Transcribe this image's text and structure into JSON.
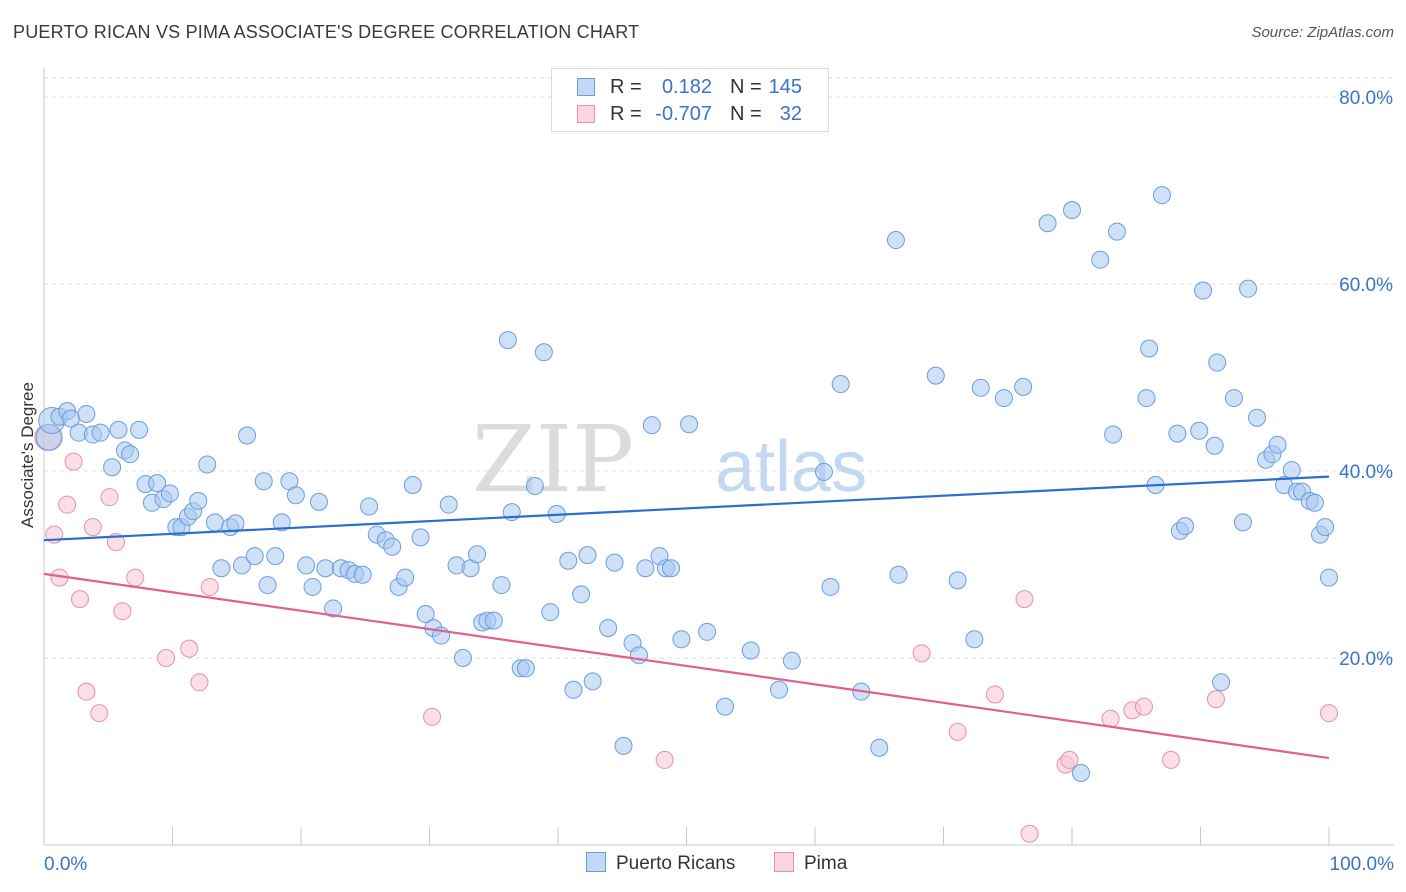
{
  "title": "PUERTO RICAN VS PIMA ASSOCIATE'S DEGREE CORRELATION CHART",
  "source": "Source: ZipAtlas.com",
  "legend": {
    "rows": [
      {
        "r_label": "R =",
        "r_value": "0.182",
        "n_label": "N =",
        "n_value": "145",
        "color": "#a8c8f0",
        "border": "#6a9de0"
      },
      {
        "r_label": "R =",
        "r_value": "-0.707",
        "n_label": "N =",
        "n_value": "32",
        "color": "#f8c4d4",
        "border": "#e890aa"
      }
    ]
  },
  "bottom_legend": {
    "series1": "Puerto Ricans",
    "series2": "Pima"
  },
  "watermark": {
    "zip": "ZIP",
    "atlas": "atlas"
  },
  "chart_data": {
    "type": "scatter",
    "title": "PUERTO RICAN VS PIMA ASSOCIATE'S DEGREE CORRELATION CHART",
    "xlabel": "",
    "ylabel": "Associate's Degree",
    "xlim": [
      0,
      100
    ],
    "ylim": [
      0,
      80
    ],
    "x_tick_labels": [
      "0.0%",
      "100.0%"
    ],
    "y_ticks": [
      20,
      40,
      60,
      80
    ],
    "y_tick_labels": [
      "20.0%",
      "40.0%",
      "60.0%",
      "80.0%"
    ],
    "series": [
      {
        "name": "Puerto Ricans",
        "color": "#a8c8f0",
        "stroke": "#6a9de0",
        "line_color": "#2a6fcf",
        "trend": {
          "x": [
            0,
            100
          ],
          "y": [
            32.6,
            39.4
          ]
        },
        "points": [
          [
            0.4,
            43.6
          ],
          [
            0.6,
            45.4
          ],
          [
            1.2,
            45.8
          ],
          [
            1.8,
            46.4
          ],
          [
            2.1,
            45.6
          ],
          [
            2.7,
            44.1
          ],
          [
            3.3,
            46.1
          ],
          [
            3.8,
            43.9
          ],
          [
            4.4,
            44.1
          ],
          [
            5.3,
            40.4
          ],
          [
            5.8,
            44.4
          ],
          [
            6.3,
            42.2
          ],
          [
            6.7,
            41.8
          ],
          [
            7.4,
            44.4
          ],
          [
            7.9,
            38.6
          ],
          [
            8.4,
            36.6
          ],
          [
            8.8,
            38.7
          ],
          [
            9.3,
            37.0
          ],
          [
            9.8,
            37.6
          ],
          [
            10.3,
            34.0
          ],
          [
            10.7,
            34.0
          ],
          [
            11.2,
            35.1
          ],
          [
            11.6,
            35.7
          ],
          [
            12.0,
            36.8
          ],
          [
            12.7,
            40.7
          ],
          [
            13.3,
            34.5
          ],
          [
            13.8,
            29.6
          ],
          [
            14.5,
            34.0
          ],
          [
            14.9,
            34.4
          ],
          [
            15.4,
            29.9
          ],
          [
            15.8,
            43.8
          ],
          [
            16.4,
            30.9
          ],
          [
            17.1,
            38.9
          ],
          [
            17.4,
            27.8
          ],
          [
            18.0,
            30.9
          ],
          [
            18.5,
            34.5
          ],
          [
            19.1,
            38.9
          ],
          [
            19.6,
            37.4
          ],
          [
            20.4,
            29.9
          ],
          [
            20.9,
            27.6
          ],
          [
            21.4,
            36.7
          ],
          [
            21.9,
            29.6
          ],
          [
            22.5,
            25.3
          ],
          [
            23.1,
            29.6
          ],
          [
            23.7,
            29.4
          ],
          [
            24.2,
            29.0
          ],
          [
            24.8,
            28.9
          ],
          [
            25.3,
            36.2
          ],
          [
            25.9,
            33.2
          ],
          [
            26.6,
            32.6
          ],
          [
            27.1,
            31.9
          ],
          [
            27.6,
            27.6
          ],
          [
            28.1,
            28.6
          ],
          [
            28.7,
            38.5
          ],
          [
            29.3,
            32.9
          ],
          [
            29.7,
            24.7
          ],
          [
            30.3,
            23.2
          ],
          [
            30.9,
            22.4
          ],
          [
            31.5,
            36.4
          ],
          [
            32.1,
            29.9
          ],
          [
            32.6,
            20.0
          ],
          [
            33.2,
            29.6
          ],
          [
            33.7,
            31.1
          ],
          [
            34.1,
            23.8
          ],
          [
            34.5,
            24.0
          ],
          [
            35.0,
            24.0
          ],
          [
            35.6,
            27.8
          ],
          [
            36.1,
            54.0
          ],
          [
            36.4,
            35.6
          ],
          [
            37.1,
            18.9
          ],
          [
            37.5,
            18.9
          ],
          [
            38.2,
            38.4
          ],
          [
            38.9,
            52.7
          ],
          [
            39.4,
            24.9
          ],
          [
            39.9,
            35.4
          ],
          [
            40.8,
            30.4
          ],
          [
            41.2,
            16.6
          ],
          [
            41.8,
            26.8
          ],
          [
            42.3,
            31.0
          ],
          [
            42.7,
            17.5
          ],
          [
            43.9,
            23.2
          ],
          [
            44.4,
            30.2
          ],
          [
            45.1,
            10.6
          ],
          [
            45.8,
            21.6
          ],
          [
            46.3,
            20.3
          ],
          [
            46.8,
            29.6
          ],
          [
            47.3,
            44.9
          ],
          [
            47.9,
            30.9
          ],
          [
            48.4,
            29.6
          ],
          [
            48.8,
            29.6
          ],
          [
            49.6,
            22.0
          ],
          [
            50.2,
            45.0
          ],
          [
            51.6,
            22.8
          ],
          [
            53.0,
            14.8
          ],
          [
            55.0,
            20.8
          ],
          [
            57.2,
            16.6
          ],
          [
            58.2,
            19.7
          ],
          [
            60.7,
            39.9
          ],
          [
            61.2,
            27.6
          ],
          [
            62.0,
            49.3
          ],
          [
            63.6,
            16.4
          ],
          [
            65.0,
            10.4
          ],
          [
            66.3,
            64.7
          ],
          [
            66.5,
            28.9
          ],
          [
            69.4,
            50.2
          ],
          [
            71.1,
            28.3
          ],
          [
            72.4,
            22.0
          ],
          [
            72.9,
            48.9
          ],
          [
            74.7,
            47.8
          ],
          [
            76.2,
            49.0
          ],
          [
            78.1,
            66.5
          ],
          [
            80.0,
            67.9
          ],
          [
            80.7,
            7.7
          ],
          [
            82.2,
            62.6
          ],
          [
            83.2,
            43.9
          ],
          [
            83.5,
            65.6
          ],
          [
            85.8,
            47.8
          ],
          [
            86.0,
            53.1
          ],
          [
            86.5,
            38.5
          ],
          [
            87.0,
            69.5
          ],
          [
            88.2,
            44.0
          ],
          [
            88.4,
            33.6
          ],
          [
            88.8,
            34.1
          ],
          [
            89.9,
            44.3
          ],
          [
            90.2,
            59.3
          ],
          [
            91.1,
            42.7
          ],
          [
            91.3,
            51.6
          ],
          [
            91.6,
            17.4
          ],
          [
            92.6,
            47.8
          ],
          [
            93.3,
            34.5
          ],
          [
            93.7,
            59.5
          ],
          [
            94.4,
            45.7
          ],
          [
            95.1,
            41.2
          ],
          [
            95.6,
            41.8
          ],
          [
            96.0,
            42.8
          ],
          [
            96.5,
            38.5
          ],
          [
            97.1,
            40.1
          ],
          [
            97.5,
            37.8
          ],
          [
            97.9,
            37.8
          ],
          [
            98.5,
            36.8
          ],
          [
            98.9,
            36.6
          ],
          [
            99.3,
            33.2
          ],
          [
            99.7,
            34.0
          ],
          [
            100.0,
            28.6
          ]
        ]
      },
      {
        "name": "Pima",
        "color": "#f8c4d4",
        "stroke": "#e890aa",
        "line_color": "#e0608a",
        "trend": {
          "x": [
            0,
            100
          ],
          "y": [
            29.0,
            9.3
          ]
        },
        "points": [
          [
            0.3,
            43.6
          ],
          [
            0.8,
            33.2
          ],
          [
            1.2,
            28.6
          ],
          [
            1.8,
            36.4
          ],
          [
            2.3,
            41.0
          ],
          [
            2.8,
            26.3
          ],
          [
            3.3,
            16.4
          ],
          [
            3.8,
            34.0
          ],
          [
            4.3,
            14.1
          ],
          [
            5.1,
            37.2
          ],
          [
            5.6,
            32.4
          ],
          [
            6.1,
            25.0
          ],
          [
            7.1,
            28.6
          ],
          [
            9.5,
            20.0
          ],
          [
            11.3,
            21.0
          ],
          [
            12.1,
            17.4
          ],
          [
            12.9,
            27.6
          ],
          [
            30.2,
            13.7
          ],
          [
            48.3,
            9.1
          ],
          [
            68.3,
            20.5
          ],
          [
            71.1,
            12.1
          ],
          [
            74.0,
            16.1
          ],
          [
            76.3,
            26.3
          ],
          [
            76.7,
            1.2
          ],
          [
            79.5,
            8.6
          ],
          [
            79.8,
            9.1
          ],
          [
            83.0,
            13.5
          ],
          [
            84.7,
            14.4
          ],
          [
            85.6,
            14.8
          ],
          [
            87.7,
            9.1
          ],
          [
            91.2,
            15.6
          ],
          [
            100.0,
            14.1
          ]
        ]
      }
    ]
  }
}
